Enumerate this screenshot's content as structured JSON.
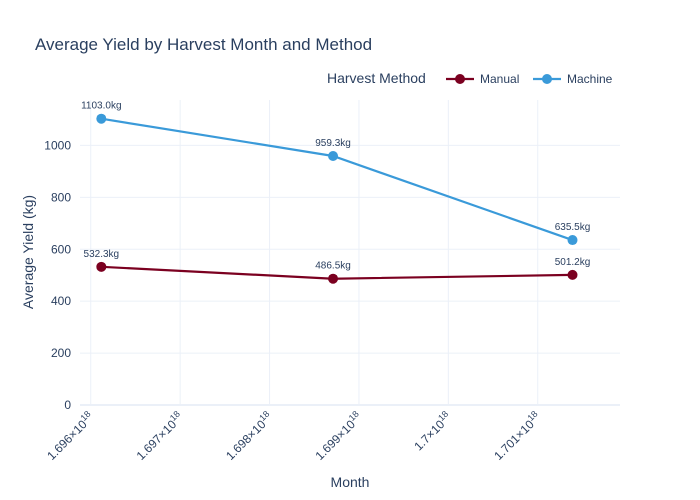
{
  "chart_data": {
    "type": "line",
    "title": "Average Yield by Harvest Month and Method",
    "xlabel": "Month",
    "ylabel": "Average Yield (kg)",
    "legend_title": "Harvest Method",
    "legend_position": "top-right",
    "grid": true,
    "x_ticks": [
      {
        "value": 1.696,
        "label": "1.696×10",
        "sup": "18"
      },
      {
        "value": 1.697,
        "label": "1.697×10",
        "sup": "18"
      },
      {
        "value": 1.698,
        "label": "1.698×10",
        "sup": "18"
      },
      {
        "value": 1.699,
        "label": "1.699×10",
        "sup": "18"
      },
      {
        "value": 1.7,
        "label": "1.7×10",
        "sup": "18"
      },
      {
        "value": 1.701,
        "label": "1.701×10",
        "sup": "18"
      }
    ],
    "x_units_note": "x values shown in units of 1e18",
    "xlim": [
      1.69588,
      1.70192
    ],
    "ylim": [
      0,
      1175
    ],
    "y_ticks": [
      0,
      200,
      400,
      600,
      800,
      1000
    ],
    "x": [
      1.6961184,
      1.6987104,
      1.7013888
    ],
    "series": [
      {
        "name": "Manual",
        "color": "#7b0020",
        "values": [
          532.3,
          486.5,
          501.2
        ],
        "labels": [
          "532.3kg",
          "486.5kg",
          "501.2kg"
        ]
      },
      {
        "name": "Machine",
        "color": "#3a9ad9",
        "values": [
          1103.0,
          959.3,
          635.5
        ],
        "labels": [
          "1103.0kg",
          "959.3kg",
          "635.5kg"
        ]
      }
    ]
  }
}
